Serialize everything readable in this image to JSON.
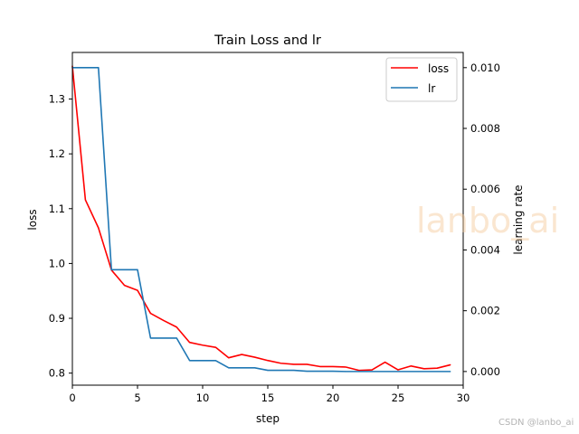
{
  "chart_data": {
    "type": "line",
    "title": "Train Loss and lr",
    "xlabel": "step",
    "ylabel": "loss",
    "y2label": "learning rate",
    "xlim": [
      0,
      30
    ],
    "ylim": [
      0.778,
      1.385
    ],
    "y2lim": [
      -0.00045,
      0.0105
    ],
    "xticks": [
      0,
      5,
      10,
      15,
      20,
      25,
      30
    ],
    "yticks": [
      0.8,
      0.9,
      1.0,
      1.1,
      1.2,
      1.3
    ],
    "y2ticks": [
      0.0,
      0.002,
      0.004,
      0.006,
      0.008,
      0.01
    ],
    "legend_position": "upper right",
    "grid": false,
    "series": [
      {
        "name": "loss",
        "axis": "left",
        "color": "#ff0000",
        "x": [
          0,
          1,
          2,
          3,
          4,
          5,
          6,
          7,
          8,
          9,
          10,
          11,
          12,
          13,
          14,
          15,
          16,
          17,
          18,
          19,
          20,
          21,
          22,
          23,
          24,
          25,
          26,
          27,
          28,
          29
        ],
        "values": [
          1.36,
          1.116,
          1.065,
          0.988,
          0.96,
          0.951,
          0.909,
          0.896,
          0.884,
          0.856,
          0.851,
          0.847,
          0.828,
          0.834,
          0.829,
          0.823,
          0.818,
          0.816,
          0.816,
          0.812,
          0.812,
          0.811,
          0.805,
          0.806,
          0.82,
          0.806,
          0.813,
          0.808,
          0.809,
          0.815
        ]
      },
      {
        "name": "lr",
        "axis": "right",
        "color": "#1f77b4",
        "x": [
          0,
          1,
          2,
          3,
          4,
          5,
          6,
          7,
          8,
          9,
          10,
          11,
          12,
          13,
          14,
          15,
          16,
          17,
          18,
          19,
          20,
          21,
          22,
          23,
          24,
          25,
          26,
          27,
          28,
          29
        ],
        "values": [
          0.01,
          0.01,
          0.01,
          0.00335,
          0.00335,
          0.00335,
          0.0011,
          0.0011,
          0.0011,
          0.00036,
          0.00036,
          0.00036,
          0.00012,
          0.00012,
          0.00012,
          4e-05,
          4e-05,
          4e-05,
          1e-05,
          1e-05,
          1e-05,
          0.0,
          0.0,
          0.0,
          0.0,
          0.0,
          0.0,
          0.0,
          0.0,
          0.0
        ]
      }
    ]
  },
  "watermark": {
    "main": "lanbo_ai",
    "credit": "CSDN @lanbo_ai"
  }
}
